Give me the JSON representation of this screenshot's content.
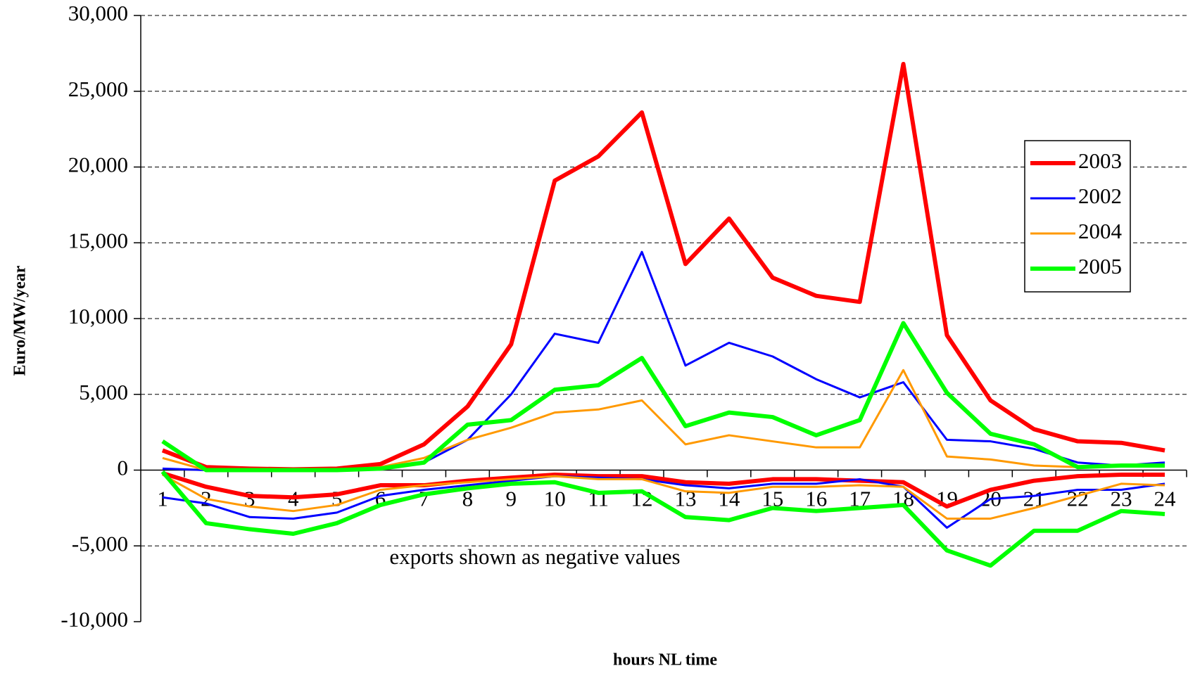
{
  "chart_data": {
    "type": "line",
    "y_label": "Euro/MW/year",
    "x_label": "hours NL time",
    "annotation": "exports shown as negative values",
    "categories": [
      "1",
      "2",
      "3",
      "4",
      "5",
      "6",
      "7",
      "8",
      "9",
      "10",
      "11",
      "12",
      "13",
      "14",
      "15",
      "16",
      "17",
      "18",
      "19",
      "20",
      "21",
      "22",
      "23",
      "24"
    ],
    "ylim": [
      -10000,
      30000
    ],
    "yticks": [
      {
        "value": -10000,
        "label": "-10,000"
      },
      {
        "value": -5000,
        "label": "-5,000"
      },
      0,
      {
        "value": 5000,
        "label": "5,000"
      },
      {
        "value": 10000,
        "label": "10,000"
      },
      {
        "value": 15000,
        "label": "15,000"
      },
      {
        "value": 20000,
        "label": "20,000"
      },
      {
        "value": 25000,
        "label": "25,000"
      },
      {
        "value": 30000,
        "label": "30,000"
      }
    ],
    "grid": true,
    "legend": "right",
    "series": [
      {
        "name": "2003",
        "color": "#ff0000",
        "values": [
          1300,
          200,
          100,
          50,
          100,
          400,
          1700,
          4200,
          8300,
          19100,
          20700,
          23600,
          13600,
          16600,
          12700,
          11500,
          11100,
          26800,
          8900,
          4600,
          2700,
          1900,
          1800,
          1300
        ],
        "exports": [
          -200,
          -1100,
          -1700,
          -1800,
          -1600,
          -1000,
          -1000,
          -700,
          -500,
          -300,
          -400,
          -400,
          -800,
          -900,
          -600,
          -600,
          -700,
          -800,
          -2400,
          -1300,
          -700,
          -400,
          -300,
          -300
        ]
      },
      {
        "name": "2002",
        "color": "#0000ff",
        "values": [
          100,
          0,
          0,
          0,
          0,
          100,
          500,
          2000,
          5000,
          9000,
          8400,
          14400,
          6900,
          8400,
          7500,
          6000,
          4800,
          5800,
          2000,
          1900,
          1400,
          500,
          300,
          500
        ],
        "exports": [
          -1800,
          -2200,
          -3100,
          -3200,
          -2800,
          -1700,
          -1300,
          -1000,
          -700,
          -400,
          -500,
          -600,
          -1000,
          -1200,
          -900,
          -900,
          -600,
          -1100,
          -3800,
          -1900,
          -1700,
          -1300,
          -1300,
          -900
        ]
      },
      {
        "name": "2004",
        "color": "#ff9900",
        "values": [
          800,
          0,
          0,
          0,
          0,
          200,
          800,
          2000,
          2800,
          3800,
          4000,
          4600,
          1700,
          2300,
          1900,
          1500,
          1500,
          6600,
          900,
          700,
          300,
          200,
          300,
          300
        ],
        "exports": [
          -300,
          -1900,
          -2400,
          -2700,
          -2300,
          -1300,
          -1000,
          -800,
          -600,
          -400,
          -600,
          -600,
          -1400,
          -1500,
          -1100,
          -1100,
          -1000,
          -1100,
          -3200,
          -3200,
          -2500,
          -1700,
          -900,
          -1000
        ]
      },
      {
        "name": "2005",
        "color": "#00ff00",
        "values": [
          1900,
          0,
          0,
          0,
          0,
          100,
          500,
          3000,
          3300,
          5300,
          5600,
          7400,
          2900,
          3800,
          3500,
          2300,
          3300,
          9700,
          5100,
          2400,
          1700,
          200,
          300,
          300
        ],
        "exports": [
          -100,
          -3500,
          -3900,
          -4200,
          -3500,
          -2300,
          -1600,
          -1200,
          -900,
          -800,
          -1500,
          -1400,
          -3100,
          -3300,
          -2500,
          -2700,
          -2500,
          -2300,
          -5300,
          -6300,
          -4000,
          -4000,
          -2700,
          -2900
        ]
      }
    ]
  }
}
